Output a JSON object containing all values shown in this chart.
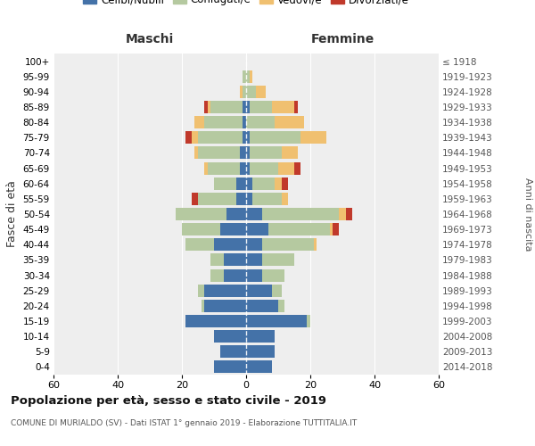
{
  "age_groups": [
    "0-4",
    "5-9",
    "10-14",
    "15-19",
    "20-24",
    "25-29",
    "30-34",
    "35-39",
    "40-44",
    "45-49",
    "50-54",
    "55-59",
    "60-64",
    "65-69",
    "70-74",
    "75-79",
    "80-84",
    "85-89",
    "90-94",
    "95-99",
    "100+"
  ],
  "birth_years": [
    "2014-2018",
    "2009-2013",
    "2004-2008",
    "1999-2003",
    "1994-1998",
    "1989-1993",
    "1984-1988",
    "1979-1983",
    "1974-1978",
    "1969-1973",
    "1964-1968",
    "1959-1963",
    "1954-1958",
    "1949-1953",
    "1944-1948",
    "1939-1943",
    "1934-1938",
    "1929-1933",
    "1924-1928",
    "1919-1923",
    "≤ 1918"
  ],
  "males": {
    "celibi": [
      10,
      8,
      10,
      19,
      13,
      13,
      7,
      7,
      10,
      8,
      6,
      3,
      3,
      2,
      2,
      1,
      1,
      1,
      0,
      0,
      0
    ],
    "coniugati": [
      0,
      0,
      0,
      0,
      1,
      2,
      4,
      4,
      9,
      12,
      16,
      12,
      7,
      10,
      13,
      14,
      12,
      10,
      1,
      1,
      0
    ],
    "vedovi": [
      0,
      0,
      0,
      0,
      0,
      0,
      0,
      0,
      0,
      0,
      0,
      0,
      0,
      1,
      1,
      2,
      3,
      1,
      1,
      0,
      0
    ],
    "divorziati": [
      0,
      0,
      0,
      0,
      0,
      0,
      0,
      0,
      0,
      0,
      0,
      2,
      0,
      0,
      0,
      2,
      0,
      1,
      0,
      0,
      0
    ]
  },
  "females": {
    "nubili": [
      8,
      9,
      9,
      19,
      10,
      8,
      5,
      5,
      5,
      7,
      5,
      2,
      2,
      1,
      1,
      1,
      0,
      1,
      0,
      0,
      0
    ],
    "coniugate": [
      0,
      0,
      0,
      1,
      2,
      3,
      7,
      10,
      16,
      19,
      24,
      9,
      7,
      9,
      10,
      16,
      9,
      7,
      3,
      1,
      0
    ],
    "vedove": [
      0,
      0,
      0,
      0,
      0,
      0,
      0,
      0,
      1,
      1,
      2,
      2,
      2,
      5,
      5,
      8,
      9,
      7,
      3,
      1,
      0
    ],
    "divorziate": [
      0,
      0,
      0,
      0,
      0,
      0,
      0,
      0,
      0,
      2,
      2,
      0,
      2,
      2,
      0,
      0,
      0,
      1,
      0,
      0,
      0
    ]
  },
  "colors": {
    "celibi": "#4472a8",
    "coniugati": "#b5c9a0",
    "vedovi": "#f0c070",
    "divorziati": "#c0392b"
  },
  "title": "Popolazione per età, sesso e stato civile - 2019",
  "subtitle": "COMUNE DI MURIALDO (SV) - Dati ISTAT 1° gennaio 2019 - Elaborazione TUTTITALIA.IT",
  "xlabel_left": "Maschi",
  "xlabel_right": "Femmine",
  "ylabel_left": "Fasce di età",
  "ylabel_right": "Anni di nascita",
  "xlim": 60,
  "legend_labels": [
    "Celibi/Nubili",
    "Coniugati/e",
    "Vedovi/e",
    "Divorziati/e"
  ],
  "background_color": "#eeeeee"
}
